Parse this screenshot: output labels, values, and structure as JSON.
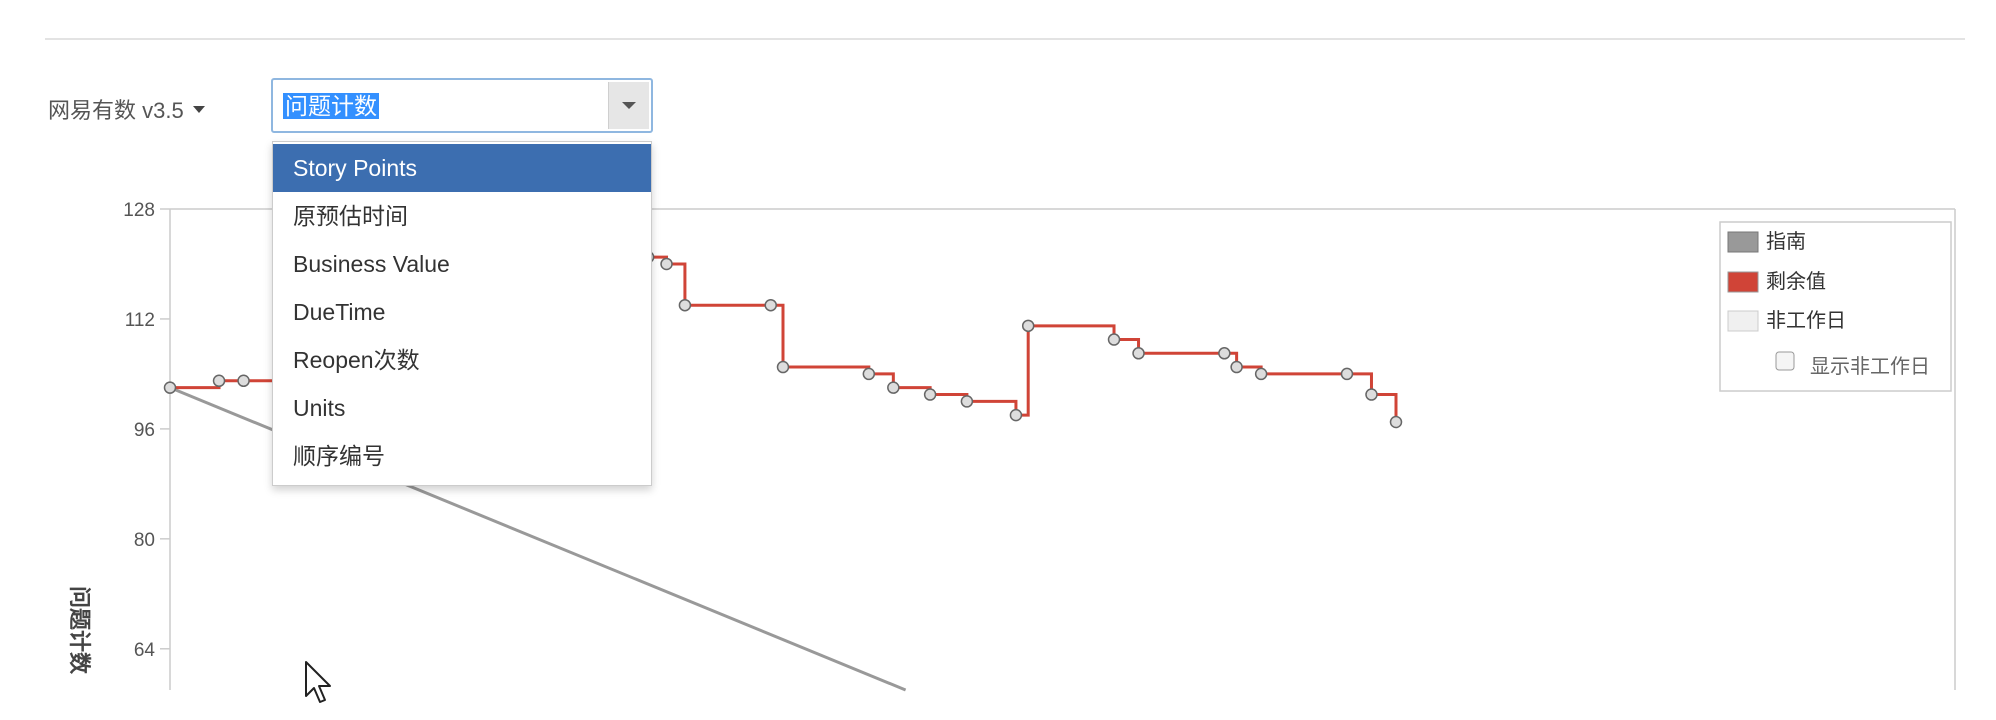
{
  "board_selector": {
    "label": "网易有数 v3.5"
  },
  "statistic_select": {
    "value": "问题计数",
    "options": [
      "Story Points",
      "原预估时间",
      "Business Value",
      "DueTime",
      "Reopen次数",
      "Units",
      "顺序编号"
    ],
    "highlighted": "Story Points"
  },
  "colors": {
    "guideline": "#999999",
    "remaining": "#d04437",
    "non_working": "#f0f0f0",
    "accent": "#3c6eb0"
  },
  "chart_data": {
    "type": "line",
    "ylabel": "问题计数",
    "y_ticks": [
      128,
      112,
      96,
      80,
      64
    ],
    "ylim": [
      58,
      128
    ],
    "legend": {
      "items": [
        {
          "label": "指南",
          "color": "#999999"
        },
        {
          "label": "剩余值",
          "color": "#d04437"
        },
        {
          "label": "非工作日",
          "color": "#f0f0f0"
        }
      ],
      "toggle_label": "显示非工作日",
      "placement": "top-right"
    },
    "series": [
      {
        "name": "指南",
        "style": "straight",
        "points": [
          [
            0,
            102
          ],
          [
            0.6,
            58
          ]
        ]
      },
      {
        "name": "剩余值",
        "style": "step",
        "points": [
          [
            0,
            102
          ],
          [
            0.04,
            103
          ],
          [
            0.06,
            103
          ],
          [
            0.12,
            105
          ],
          [
            0.3,
            105
          ],
          [
            0.39,
            121
          ],
          [
            0.405,
            120
          ],
          [
            0.42,
            114
          ],
          [
            0.49,
            114
          ],
          [
            0.5,
            105
          ],
          [
            0.57,
            104
          ],
          [
            0.59,
            102
          ],
          [
            0.62,
            101
          ],
          [
            0.65,
            100
          ],
          [
            0.69,
            98
          ],
          [
            0.7,
            111
          ],
          [
            0.77,
            109
          ],
          [
            0.79,
            107
          ],
          [
            0.86,
            107
          ],
          [
            0.87,
            105
          ],
          [
            0.89,
            104
          ],
          [
            0.96,
            104
          ],
          [
            0.98,
            101
          ],
          [
            1.0,
            97
          ]
        ]
      }
    ]
  }
}
